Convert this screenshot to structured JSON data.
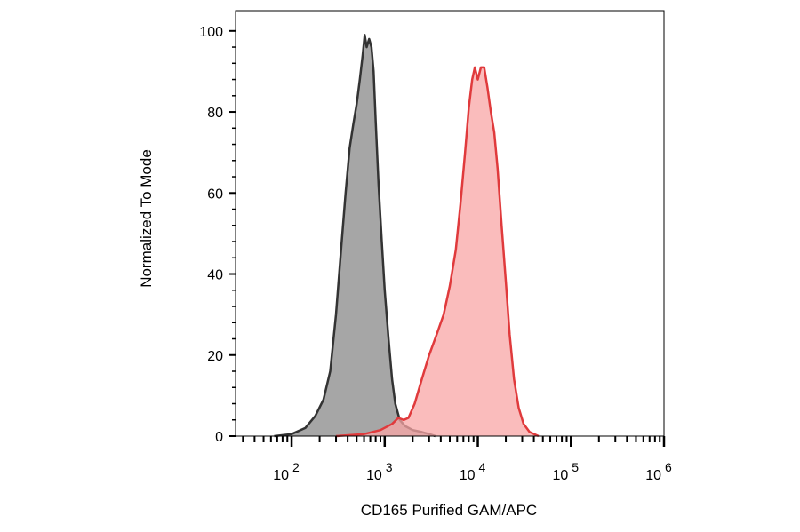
{
  "chart_data": {
    "type": "area",
    "title": "",
    "xlabel": "CD165 Purified GAM/APC",
    "ylabel": "Normalized To Mode",
    "xscale": "log",
    "xlim": [
      25,
      1000000
    ],
    "ylim": [
      0,
      105
    ],
    "grid": false,
    "legend": "none",
    "yticks": [
      0,
      20,
      40,
      60,
      80,
      100
    ],
    "ytick_labels": [
      "0",
      "20",
      "40",
      "60",
      "80",
      "100"
    ],
    "xticks": [
      {
        "base": "10",
        "exp": "2",
        "value": 100
      },
      {
        "base": "10",
        "exp": "3",
        "value": 1000
      },
      {
        "base": "10",
        "exp": "4",
        "value": 10000
      },
      {
        "base": "10",
        "exp": "5",
        "value": 100000
      },
      {
        "base": "10",
        "exp": "6",
        "value": 1000000
      }
    ],
    "series": [
      {
        "fill": "#a6a6a6",
        "stroke": "#333333",
        "points": [
          [
            65,
            0
          ],
          [
            100,
            0.5
          ],
          [
            140,
            2
          ],
          [
            180,
            5
          ],
          [
            220,
            9
          ],
          [
            260,
            16
          ],
          [
            300,
            30
          ],
          [
            340,
            46
          ],
          [
            380,
            60
          ],
          [
            420,
            71
          ],
          [
            460,
            77
          ],
          [
            500,
            82
          ],
          [
            540,
            88
          ],
          [
            580,
            94
          ],
          [
            610,
            99
          ],
          [
            640,
            96
          ],
          [
            680,
            98
          ],
          [
            720,
            96
          ],
          [
            760,
            90
          ],
          [
            800,
            78
          ],
          [
            860,
            62
          ],
          [
            930,
            48
          ],
          [
            1000,
            36
          ],
          [
            1100,
            24
          ],
          [
            1200,
            14
          ],
          [
            1300,
            8
          ],
          [
            1450,
            4
          ],
          [
            1650,
            2.5
          ],
          [
            2000,
            1.5
          ],
          [
            2500,
            1
          ],
          [
            3000,
            0.5
          ],
          [
            3500,
            0
          ]
        ]
      },
      {
        "fill": "#f8a5a6",
        "stroke": "#e03a3c",
        "points": [
          [
            300,
            0
          ],
          [
            600,
            0.5
          ],
          [
            900,
            1.5
          ],
          [
            1200,
            3
          ],
          [
            1400,
            4.5
          ],
          [
            1600,
            4
          ],
          [
            1800,
            4.5
          ],
          [
            2100,
            8
          ],
          [
            2500,
            14
          ],
          [
            3000,
            20
          ],
          [
            3600,
            25
          ],
          [
            4300,
            30
          ],
          [
            5000,
            37
          ],
          [
            5800,
            46
          ],
          [
            6500,
            57
          ],
          [
            7300,
            70
          ],
          [
            8000,
            81
          ],
          [
            8700,
            88
          ],
          [
            9300,
            91
          ],
          [
            10000,
            88
          ],
          [
            10800,
            91
          ],
          [
            11700,
            91
          ],
          [
            12700,
            86
          ],
          [
            13800,
            80
          ],
          [
            15000,
            75
          ],
          [
            16300,
            66
          ],
          [
            18000,
            52
          ],
          [
            20000,
            38
          ],
          [
            22000,
            25
          ],
          [
            24500,
            14
          ],
          [
            27500,
            7
          ],
          [
            31000,
            3
          ],
          [
            36000,
            1
          ],
          [
            45000,
            0
          ]
        ]
      }
    ]
  }
}
